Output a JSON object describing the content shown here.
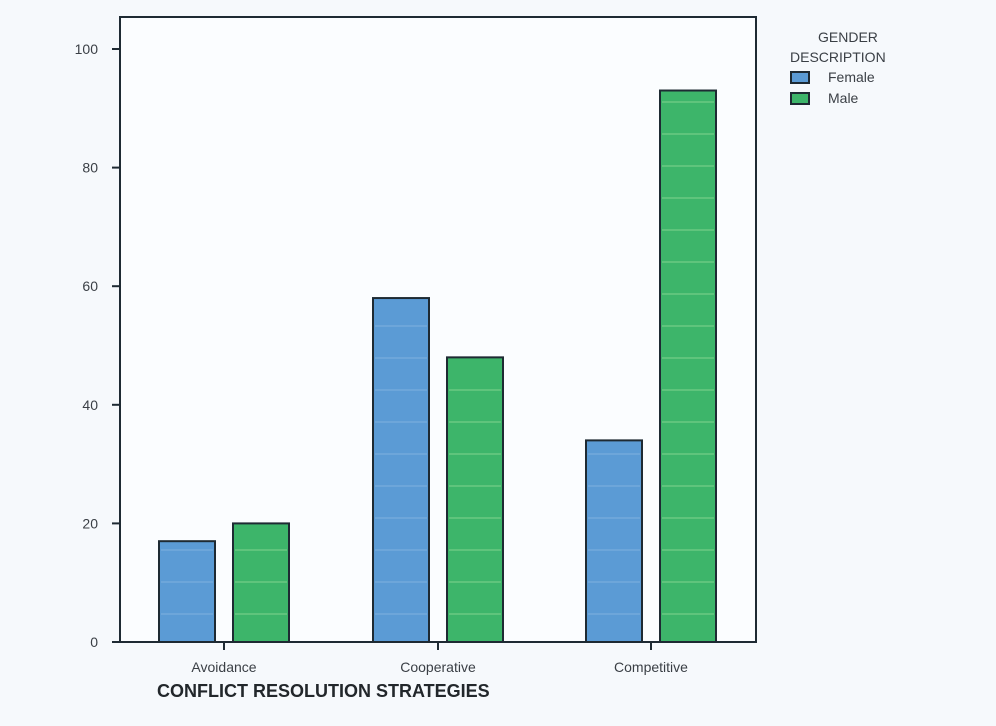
{
  "chart_data": {
    "type": "bar",
    "title": "",
    "xlabel": "CONFLICT RESOLUTION STRATEGIES",
    "ylabel": "",
    "ylim": [
      0,
      100
    ],
    "yticks": [
      "0",
      "20",
      "40",
      "60",
      "80",
      "100"
    ],
    "categories": [
      "Avoidance",
      "Cooperative",
      "Competitive"
    ],
    "series": [
      {
        "name": "Female",
        "values": [
          17,
          58,
          34
        ],
        "color": "#5b9bd5"
      },
      {
        "name": "Male",
        "values": [
          20,
          48,
          93
        ],
        "color": "#3db56a"
      }
    ],
    "legend": {
      "title_line1": "GENDER",
      "title_line2": "DESCRIPTION",
      "position": "top-right"
    },
    "grid": false
  }
}
